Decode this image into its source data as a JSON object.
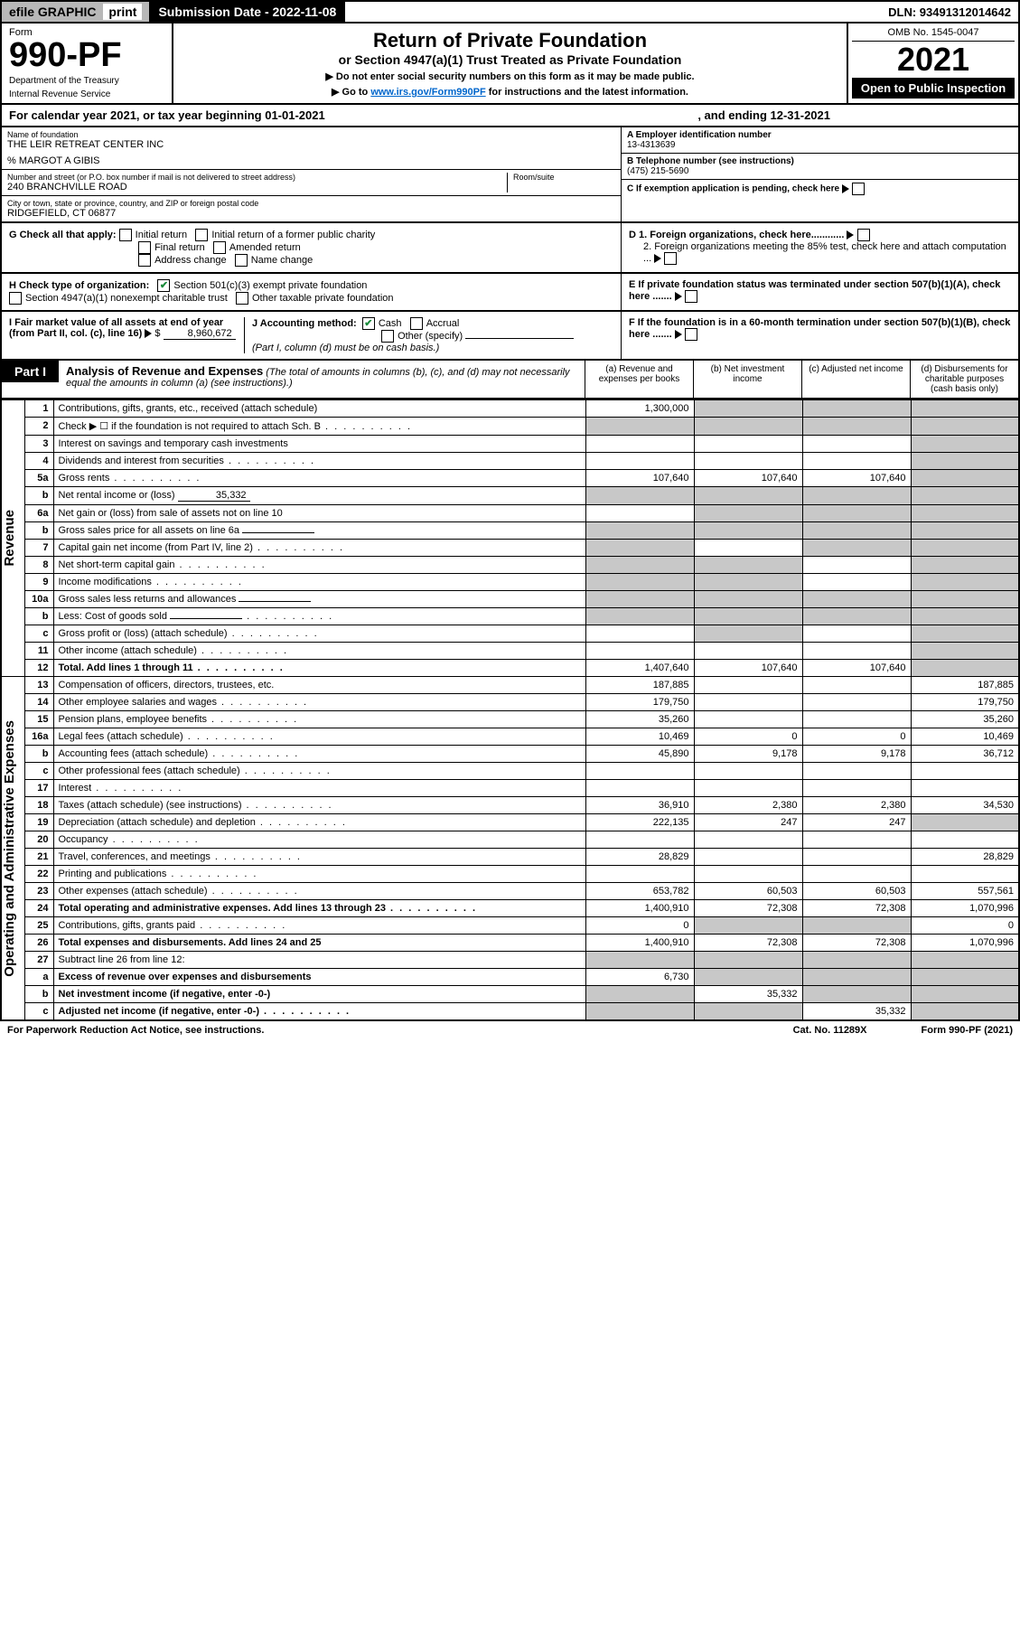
{
  "topbar": {
    "efile": "efile GRAPHIC",
    "print": "print",
    "submission_label": "Submission Date - 2022-11-08",
    "dln": "DLN: 93491312014642"
  },
  "header": {
    "form_label": "Form",
    "form_number": "990-PF",
    "dept": "Department of the Treasury",
    "irs": "Internal Revenue Service",
    "title": "Return of Private Foundation",
    "subtitle": "or Section 4947(a)(1) Trust Treated as Private Foundation",
    "note1": "▶ Do not enter social security numbers on this form as it may be made public.",
    "note2_pre": "▶ Go to ",
    "note2_link": "www.irs.gov/Form990PF",
    "note2_post": " for instructions and the latest information.",
    "omb": "OMB No. 1545-0047",
    "year": "2021",
    "open": "Open to Public Inspection"
  },
  "calyear": {
    "text": "For calendar year 2021, or tax year beginning 01-01-2021",
    "end": ", and ending 12-31-2021"
  },
  "info": {
    "name_label": "Name of foundation",
    "name": "THE LEIR RETREAT CENTER INC",
    "care_of": "% MARGOT A GIBIS",
    "addr_label": "Number and street (or P.O. box number if mail is not delivered to street address)",
    "addr": "240 BRANCHVILLE ROAD",
    "room_label": "Room/suite",
    "city_label": "City or town, state or province, country, and ZIP or foreign postal code",
    "city": "RIDGEFIELD, CT  06877",
    "a_label": "A Employer identification number",
    "a_value": "13-4313639",
    "b_label": "B Telephone number (see instructions)",
    "b_value": "(475) 215-5690",
    "c_label": "C If exemption application is pending, check here"
  },
  "g": {
    "label": "G Check all that apply:",
    "opts": [
      "Initial return",
      "Initial return of a former public charity",
      "Final return",
      "Amended return",
      "Address change",
      "Name change"
    ]
  },
  "h": {
    "label": "H Check type of organization:",
    "opt1": "Section 501(c)(3) exempt private foundation",
    "opt2": "Section 4947(a)(1) nonexempt charitable trust",
    "opt3": "Other taxable private foundation"
  },
  "d": {
    "d1": "D 1. Foreign organizations, check here............",
    "d2": "2. Foreign organizations meeting the 85% test, check here and attach computation ..."
  },
  "e": "E  If private foundation status was terminated under section 507(b)(1)(A), check here .......",
  "i": {
    "label": "I Fair market value of all assets at end of year (from Part II, col. (c), line 16)",
    "value": "8,960,672"
  },
  "j": {
    "label": "J Accounting method:",
    "cash": "Cash",
    "accrual": "Accrual",
    "other": "Other (specify)",
    "note": "(Part I, column (d) must be on cash basis.)"
  },
  "f": "F  If the foundation is in a 60-month termination under section 507(b)(1)(B), check here .......",
  "part1": {
    "tab": "Part I",
    "title": "Analysis of Revenue and Expenses",
    "note": "(The total of amounts in columns (b), (c), and (d) may not necessarily equal the amounts in column (a) (see instructions).)",
    "col_a": "(a) Revenue and expenses per books",
    "col_b": "(b) Net investment income",
    "col_c": "(c) Adjusted net income",
    "col_d": "(d) Disbursements for charitable purposes (cash basis only)"
  },
  "vert": {
    "revenue": "Revenue",
    "expenses": "Operating and Administrative Expenses"
  },
  "lines": [
    {
      "n": "1",
      "d": "Contributions, gifts, grants, etc., received (attach schedule)",
      "a": "1,300,000",
      "b": "",
      "c": "",
      "dd": "",
      "gb": true,
      "gc": true,
      "gd": true
    },
    {
      "n": "2",
      "d": "Check ▶ ☐ if the foundation is not required to attach Sch. B",
      "a": "",
      "b": "",
      "c": "",
      "dd": "",
      "ga": true,
      "gb": true,
      "gc": true,
      "gd": true,
      "dots": true
    },
    {
      "n": "3",
      "d": "Interest on savings and temporary cash investments",
      "a": "",
      "b": "",
      "c": "",
      "dd": "",
      "gd": true
    },
    {
      "n": "4",
      "d": "Dividends and interest from securities",
      "a": "",
      "b": "",
      "c": "",
      "dd": "",
      "gd": true,
      "dots": true
    },
    {
      "n": "5a",
      "d": "Gross rents",
      "a": "107,640",
      "b": "107,640",
      "c": "107,640",
      "dd": "",
      "gd": true,
      "dots": true
    },
    {
      "n": "b",
      "d": "Net rental income or (loss)",
      "inline": "35,332",
      "a": "",
      "b": "",
      "c": "",
      "dd": "",
      "ga": true,
      "gb": true,
      "gc": true,
      "gd": true
    },
    {
      "n": "6a",
      "d": "Net gain or (loss) from sale of assets not on line 10",
      "a": "",
      "b": "",
      "c": "",
      "dd": "",
      "gb": true,
      "gc": true,
      "gd": true
    },
    {
      "n": "b",
      "d": "Gross sales price for all assets on line 6a",
      "inline": "",
      "a": "",
      "b": "",
      "c": "",
      "dd": "",
      "ga": true,
      "gb": true,
      "gc": true,
      "gd": true
    },
    {
      "n": "7",
      "d": "Capital gain net income (from Part IV, line 2)",
      "a": "",
      "b": "",
      "c": "",
      "dd": "",
      "ga": true,
      "gc": true,
      "gd": true,
      "dots": true
    },
    {
      "n": "8",
      "d": "Net short-term capital gain",
      "a": "",
      "b": "",
      "c": "",
      "dd": "",
      "ga": true,
      "gb": true,
      "gd": true,
      "dots": true
    },
    {
      "n": "9",
      "d": "Income modifications",
      "a": "",
      "b": "",
      "c": "",
      "dd": "",
      "ga": true,
      "gb": true,
      "gd": true,
      "dots": true
    },
    {
      "n": "10a",
      "d": "Gross sales less returns and allowances",
      "inline": "",
      "a": "",
      "b": "",
      "c": "",
      "dd": "",
      "ga": true,
      "gb": true,
      "gc": true,
      "gd": true
    },
    {
      "n": "b",
      "d": "Less: Cost of goods sold",
      "inline": "",
      "a": "",
      "b": "",
      "c": "",
      "dd": "",
      "ga": true,
      "gb": true,
      "gc": true,
      "gd": true,
      "dots": true
    },
    {
      "n": "c",
      "d": "Gross profit or (loss) (attach schedule)",
      "a": "",
      "b": "",
      "c": "",
      "dd": "",
      "gb": true,
      "gd": true,
      "dots": true
    },
    {
      "n": "11",
      "d": "Other income (attach schedule)",
      "a": "",
      "b": "",
      "c": "",
      "dd": "",
      "gd": true,
      "dots": true
    },
    {
      "n": "12",
      "d": "Total. Add lines 1 through 11",
      "a": "1,407,640",
      "b": "107,640",
      "c": "107,640",
      "dd": "",
      "bold": true,
      "gd": true,
      "dots": true
    },
    {
      "n": "13",
      "d": "Compensation of officers, directors, trustees, etc.",
      "a": "187,885",
      "b": "",
      "c": "",
      "dd": "187,885"
    },
    {
      "n": "14",
      "d": "Other employee salaries and wages",
      "a": "179,750",
      "b": "",
      "c": "",
      "dd": "179,750",
      "dots": true
    },
    {
      "n": "15",
      "d": "Pension plans, employee benefits",
      "a": "35,260",
      "b": "",
      "c": "",
      "dd": "35,260",
      "dots": true
    },
    {
      "n": "16a",
      "d": "Legal fees (attach schedule)",
      "a": "10,469",
      "b": "0",
      "c": "0",
      "dd": "10,469",
      "dots": true
    },
    {
      "n": "b",
      "d": "Accounting fees (attach schedule)",
      "a": "45,890",
      "b": "9,178",
      "c": "9,178",
      "dd": "36,712",
      "dots": true
    },
    {
      "n": "c",
      "d": "Other professional fees (attach schedule)",
      "a": "",
      "b": "",
      "c": "",
      "dd": "",
      "dots": true
    },
    {
      "n": "17",
      "d": "Interest",
      "a": "",
      "b": "",
      "c": "",
      "dd": "",
      "dots": true
    },
    {
      "n": "18",
      "d": "Taxes (attach schedule) (see instructions)",
      "a": "36,910",
      "b": "2,380",
      "c": "2,380",
      "dd": "34,530",
      "dots": true
    },
    {
      "n": "19",
      "d": "Depreciation (attach schedule) and depletion",
      "a": "222,135",
      "b": "247",
      "c": "247",
      "dd": "",
      "gd": true,
      "dots": true
    },
    {
      "n": "20",
      "d": "Occupancy",
      "a": "",
      "b": "",
      "c": "",
      "dd": "",
      "dots": true
    },
    {
      "n": "21",
      "d": "Travel, conferences, and meetings",
      "a": "28,829",
      "b": "",
      "c": "",
      "dd": "28,829",
      "dots": true
    },
    {
      "n": "22",
      "d": "Printing and publications",
      "a": "",
      "b": "",
      "c": "",
      "dd": "",
      "dots": true
    },
    {
      "n": "23",
      "d": "Other expenses (attach schedule)",
      "a": "653,782",
      "b": "60,503",
      "c": "60,503",
      "dd": "557,561",
      "dots": true
    },
    {
      "n": "24",
      "d": "Total operating and administrative expenses. Add lines 13 through 23",
      "a": "1,400,910",
      "b": "72,308",
      "c": "72,308",
      "dd": "1,070,996",
      "bold": true,
      "dots": true
    },
    {
      "n": "25",
      "d": "Contributions, gifts, grants paid",
      "a": "0",
      "b": "",
      "c": "",
      "dd": "0",
      "gb": true,
      "gc": true,
      "dots": true
    },
    {
      "n": "26",
      "d": "Total expenses and disbursements. Add lines 24 and 25",
      "a": "1,400,910",
      "b": "72,308",
      "c": "72,308",
      "dd": "1,070,996",
      "bold": true
    },
    {
      "n": "27",
      "d": "Subtract line 26 from line 12:",
      "a": "",
      "b": "",
      "c": "",
      "dd": "",
      "ga": true,
      "gb": true,
      "gc": true,
      "gd": true
    },
    {
      "n": "a",
      "d": "Excess of revenue over expenses and disbursements",
      "a": "6,730",
      "b": "",
      "c": "",
      "dd": "",
      "bold": true,
      "gb": true,
      "gc": true,
      "gd": true
    },
    {
      "n": "b",
      "d": "Net investment income (if negative, enter -0-)",
      "a": "",
      "b": "35,332",
      "c": "",
      "dd": "",
      "bold": true,
      "ga": true,
      "gc": true,
      "gd": true
    },
    {
      "n": "c",
      "d": "Adjusted net income (if negative, enter -0-)",
      "a": "",
      "b": "",
      "c": "35,332",
      "dd": "",
      "bold": true,
      "ga": true,
      "gb": true,
      "gd": true,
      "dots": true
    }
  ],
  "footer": {
    "left": "For Paperwork Reduction Act Notice, see instructions.",
    "mid": "Cat. No. 11289X",
    "right": "Form 990-PF (2021)"
  },
  "colors": {
    "gray_bg": "#c8c8c8",
    "topbar_gray": "#b8b8b8",
    "link": "#0066cc",
    "check_green": "#1a8a3a"
  }
}
